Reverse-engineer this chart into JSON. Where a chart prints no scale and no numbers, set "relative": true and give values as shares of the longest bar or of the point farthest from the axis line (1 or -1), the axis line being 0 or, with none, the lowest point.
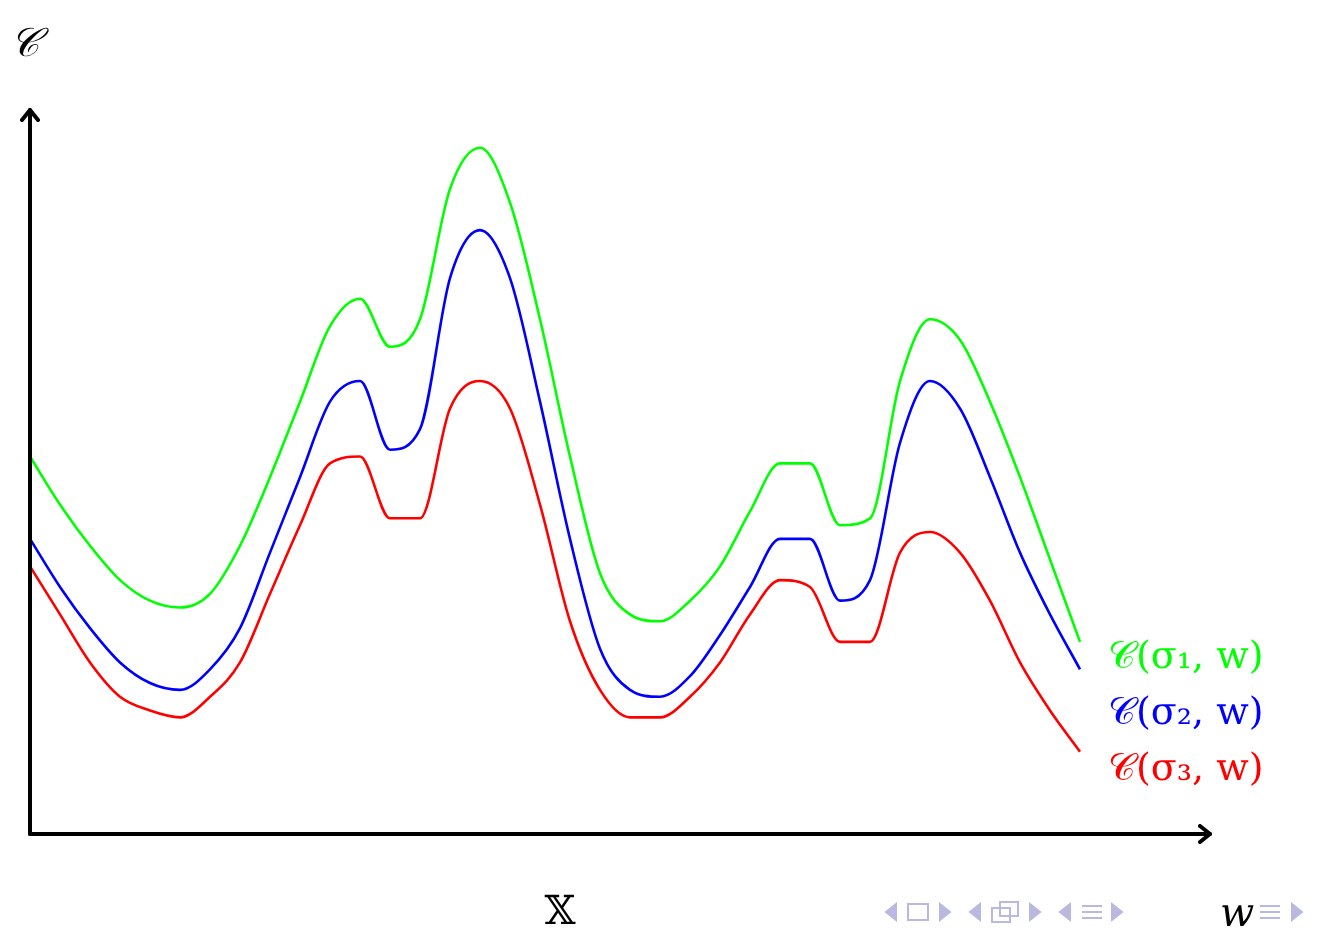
{
  "chart_data": {
    "type": "line",
    "relative": true,
    "ylabel": "𝒞",
    "xlabel": "w",
    "annotations": [
      "𝕏"
    ],
    "legend": false,
    "grid": false,
    "tick_labels": false,
    "marker": "none",
    "line_style": "solid",
    "categories": [
      null,
      null,
      null,
      null,
      null,
      null,
      null,
      null,
      null,
      null,
      null,
      null,
      null,
      null,
      null,
      null,
      null,
      null,
      null,
      null,
      null,
      null,
      null,
      null,
      null,
      null,
      null,
      null,
      null,
      null,
      null,
      null,
      null,
      null,
      null,
      null,
      null,
      null,
      null,
      null
    ],
    "series": [
      {
        "name": "𝒞(σ₁, w)",
        "color": "#00ff00",
        "values": [
          0.55,
          0.48,
          0.42,
          0.37,
          0.34,
          0.33,
          0.35,
          0.42,
          0.52,
          0.63,
          0.74,
          0.78,
          0.71,
          0.75,
          0.94,
          1,
          0.92,
          0.75,
          0.55,
          0.38,
          0.32,
          0.31,
          0.34,
          0.39,
          0.47,
          0.54,
          0.54,
          0.45,
          0.46,
          0.66,
          0.75,
          0.72,
          0.63,
          0.52,
          0.4,
          0.28,
          null,
          null,
          null,
          null
        ]
      },
      {
        "name": "𝒞(σ₂, w)",
        "color": "#0000ff",
        "values": [
          0.43,
          0.36,
          0.3,
          0.25,
          0.22,
          0.21,
          0.24,
          0.3,
          0.41,
          0.52,
          0.63,
          0.66,
          0.56,
          0.59,
          0.81,
          0.88,
          0.81,
          0.63,
          0.43,
          0.27,
          0.21,
          0.2,
          0.23,
          0.29,
          0.36,
          0.43,
          0.43,
          0.34,
          0.37,
          0.57,
          0.66,
          0.62,
          0.52,
          0.41,
          0.32,
          0.24,
          null,
          null,
          null,
          null
        ]
      },
      {
        "name": "𝒞(σ₃, w)",
        "color": "#ff0000",
        "values": [
          0.39,
          0.32,
          0.25,
          0.2,
          0.18,
          0.17,
          0.2,
          0.25,
          0.35,
          0.45,
          0.54,
          0.55,
          0.46,
          0.46,
          0.62,
          0.66,
          0.62,
          0.48,
          0.31,
          0.21,
          0.17,
          0.17,
          0.2,
          0.25,
          0.32,
          0.37,
          0.36,
          0.28,
          0.28,
          0.41,
          0.44,
          0.41,
          0.34,
          0.25,
          0.18,
          0.12,
          null,
          null,
          null,
          null
        ]
      }
    ]
  }
}
